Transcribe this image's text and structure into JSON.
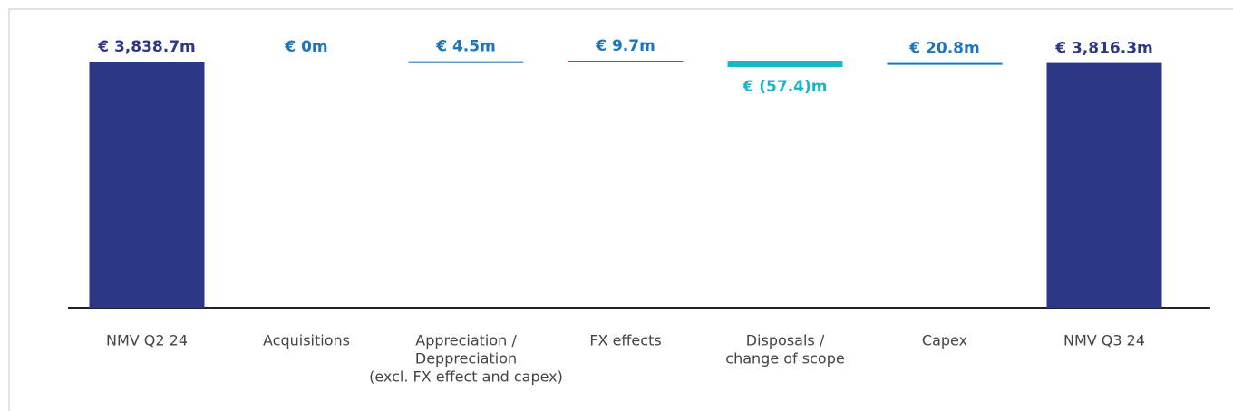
{
  "chart_data": {
    "type": "waterfall",
    "categories": [
      [
        "NMV Q2 24"
      ],
      [
        "Acquisitions"
      ],
      [
        "Appreciation /",
        "Deppreciation",
        "(excl. FX effect and capex)"
      ],
      [
        "FX effects"
      ],
      [
        "Disposals /",
        "change of scope"
      ],
      [
        "Capex"
      ],
      [
        "NMV Q3 24"
      ]
    ],
    "values": [
      3838.7,
      0,
      4.5,
      9.7,
      -57.4,
      20.8,
      3816.3
    ],
    "value_labels": [
      "€  3,838.7m",
      "€ 0m",
      "€ 4.5m",
      "€ 9.7m",
      "€ (57.4)m",
      "€ 20.8m",
      "€ 3,816.3m"
    ],
    "colors": {
      "total": "#2c3786",
      "increase": "#1d75bc",
      "decrease": "#1bb5c9"
    }
  }
}
